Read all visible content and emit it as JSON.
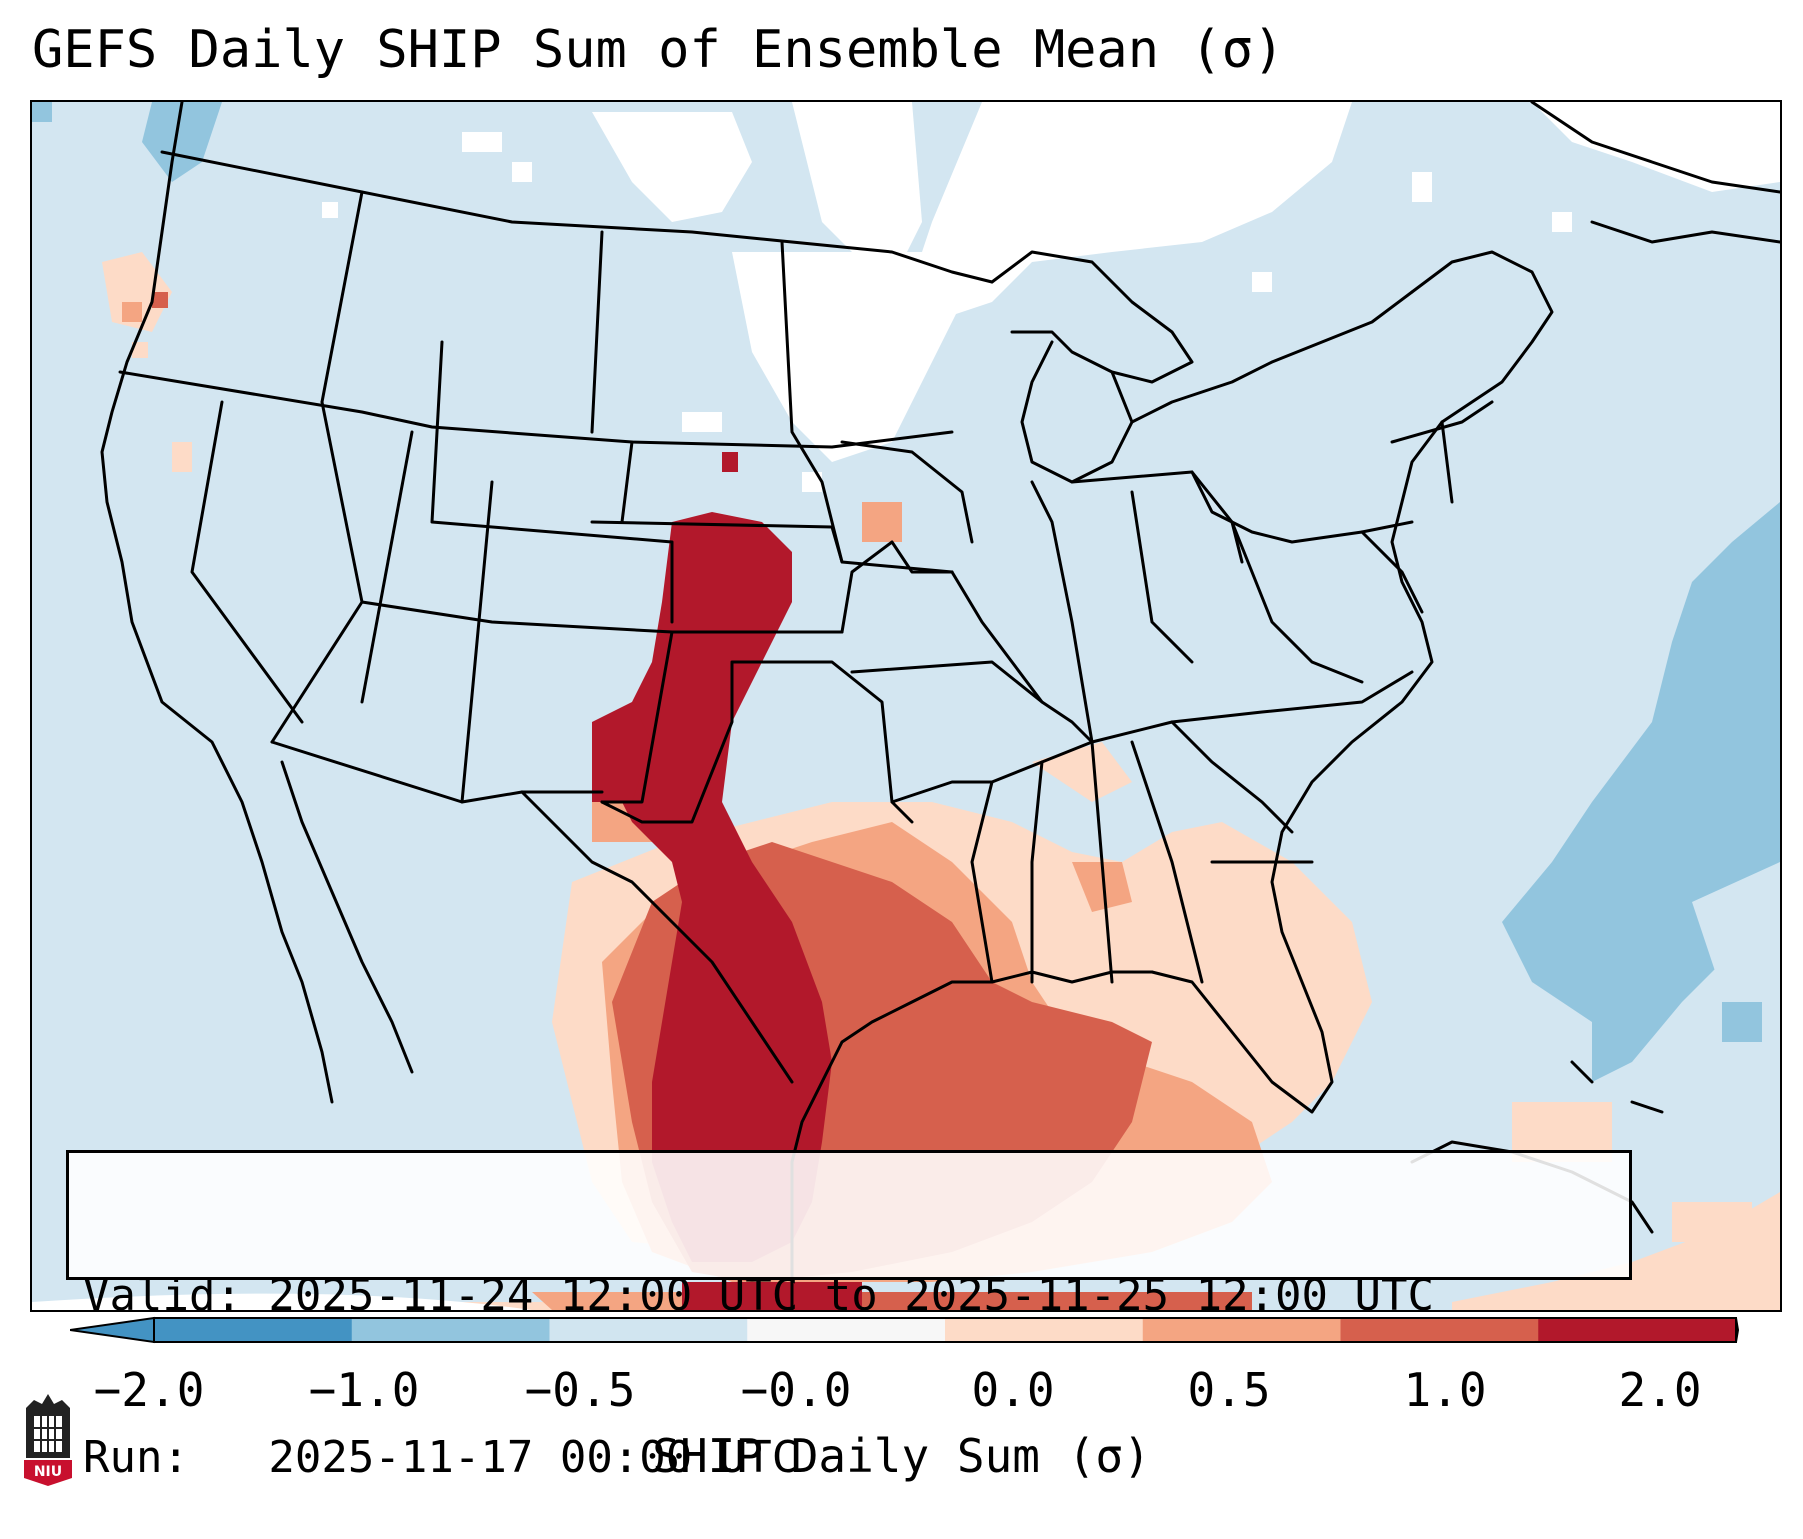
{
  "title": "GEFS Daily SHIP Sum of Ensemble Mean (σ)",
  "info": {
    "valid_line": "Valid: 2025-11-24 12:00 UTC to 2025-11-25 12:00 UTC",
    "run_line": "Run:   2025-11-17 00:00 UTC"
  },
  "colorbar": {
    "label": "SHIP Daily Sum (σ)",
    "ticks": [
      "−2.0",
      "−1.0",
      "−0.5",
      "−0.0",
      "0.0",
      "0.5",
      "1.0",
      "2.0"
    ],
    "colors": [
      "#4393c3",
      "#92c5de",
      "#d1e5f0",
      "#f7f7f7",
      "#fddbc7",
      "#f4a582",
      "#d6604d",
      "#b2182b"
    ],
    "extend": "both"
  },
  "logo": {
    "icon": "niu-castle-icon",
    "text": "NIU"
  }
}
